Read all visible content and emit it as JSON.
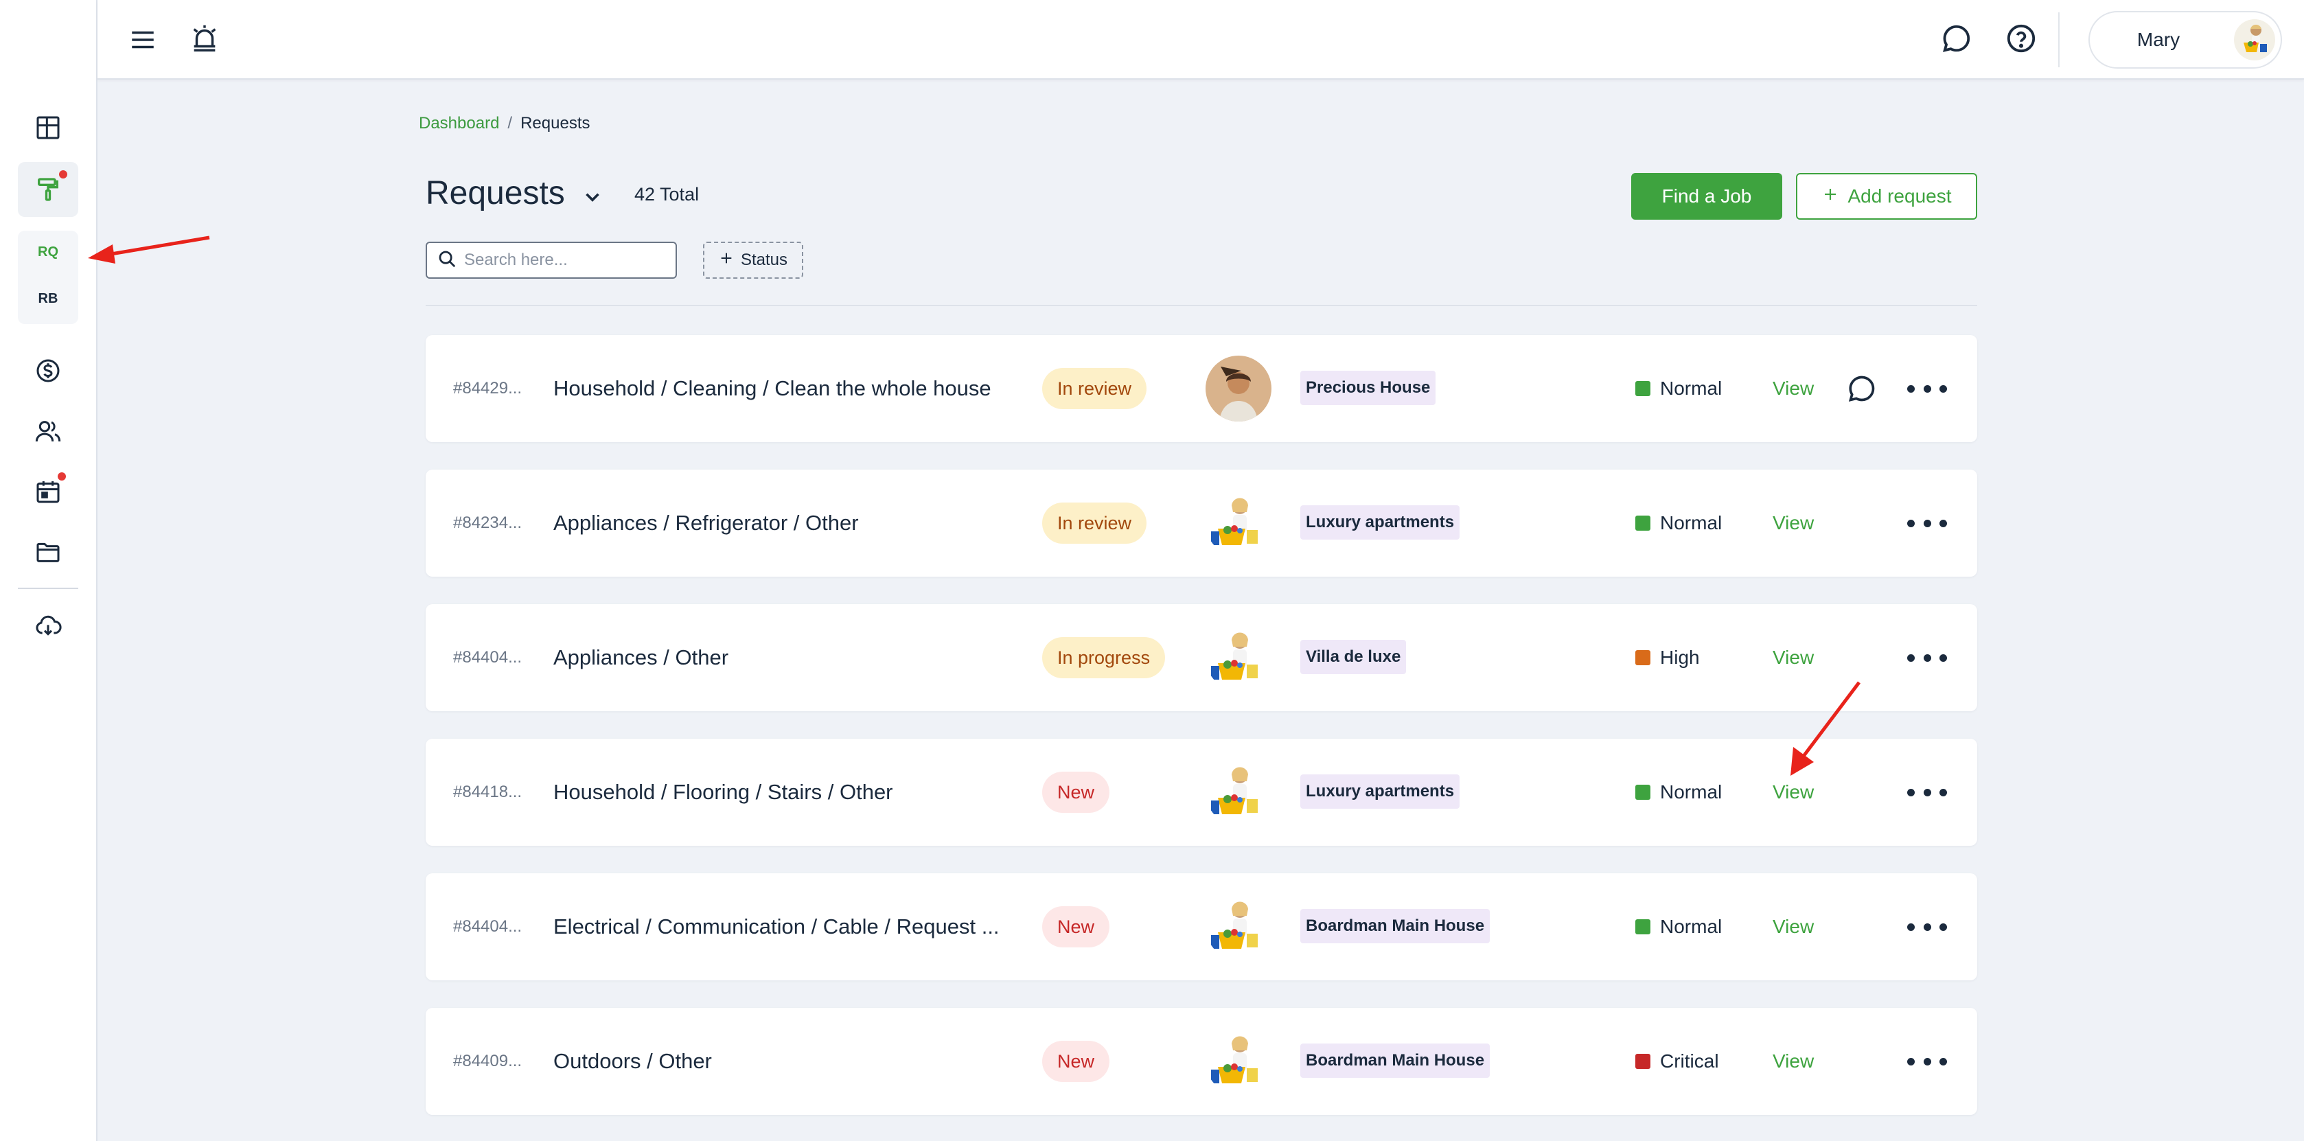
{
  "sidebar": {
    "items": [
      {
        "icon": "dashboard-grid-icon"
      },
      {
        "icon": "paint-roller-icon",
        "active": true,
        "badge": true
      },
      {
        "icon": "dollar-circle-icon"
      },
      {
        "icon": "users-icon"
      },
      {
        "icon": "calendar-icon",
        "badge": true
      },
      {
        "icon": "folder-icon"
      },
      {
        "icon": "cloud-download-icon"
      }
    ],
    "sub_items": [
      {
        "label": "RQ",
        "color": "#3ea33f"
      },
      {
        "label": "RB",
        "color": "#1b2a3d"
      }
    ]
  },
  "topbar": {
    "icons": [
      "menu-icon",
      "bell-alarm-icon",
      "chat-icon",
      "help-icon"
    ],
    "user_name": "Mary"
  },
  "breadcrumb": {
    "root": "Dashboard",
    "separator": "/",
    "current": "Requests"
  },
  "header": {
    "title": "Requests",
    "total": "42 Total",
    "find_job": "Find a Job",
    "add_request": "Add request"
  },
  "filters": {
    "search_placeholder": "Search here...",
    "search_value": "",
    "status_label": "Status"
  },
  "colors": {
    "accent": "#3ea33f",
    "normal": "#3ea33f",
    "high": "#d96b1a",
    "critical": "#c62828"
  },
  "requests": [
    {
      "id": "#84429...",
      "title": "Household / Cleaning / Clean the whole house",
      "status": "In review",
      "property": "Precious House",
      "priority": "Normal",
      "view": "View",
      "has_chat": true
    },
    {
      "id": "#84234...",
      "title": "Appliances / Refrigerator / Other",
      "status": "In review",
      "property": "Luxury apartments",
      "priority": "Normal",
      "view": "View",
      "has_chat": false
    },
    {
      "id": "#84404...",
      "title": "Appliances / Other",
      "status": "In progress",
      "property": "Villa de luxe",
      "priority": "High",
      "view": "View",
      "has_chat": false
    },
    {
      "id": "#84418...",
      "title": "Household / Flooring / Stairs / Other",
      "status": "New",
      "property": "Luxury apartments",
      "priority": "Normal",
      "view": "View",
      "has_chat": false
    },
    {
      "id": "#84404...",
      "title": "Electrical / Communication / Cable / Request ...",
      "status": "New",
      "property": "Boardman Main House",
      "priority": "Normal",
      "view": "View",
      "has_chat": false
    },
    {
      "id": "#84409...",
      "title": "Outdoors / Other",
      "status": "New",
      "property": "Boardman Main House",
      "priority": "Critical",
      "view": "View",
      "has_chat": false
    }
  ]
}
